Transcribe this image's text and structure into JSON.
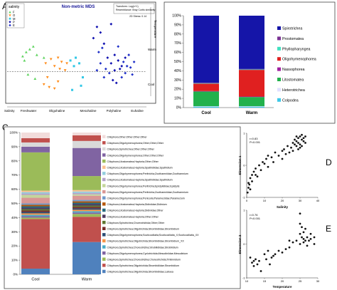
{
  "panel_letters": {
    "a": "A",
    "b": "B",
    "c": "C",
    "d": "D",
    "e": "E"
  },
  "chart_data": [
    {
      "panel": "A",
      "type": "scatter",
      "title": "Non-metric MDS",
      "info_lines": [
        "Transform: Log(x+1)",
        "Resemblance: Bray Curtis similarity"
      ],
      "stress": "2D Stress: 0.14",
      "legend_title": "salinity",
      "legend": [
        {
          "key": "F",
          "color": "#5fd35f",
          "shape": "tri-up"
        },
        {
          "key": "O",
          "color": "#ff8c1a",
          "shape": "tri-down"
        },
        {
          "key": "M",
          "color": "#33c8e6",
          "shape": "square"
        },
        {
          "key": "P",
          "color": "#1010b0",
          "shape": "diamond"
        },
        {
          "key": "E",
          "color": "#2030c8",
          "shape": "diamond"
        }
      ],
      "right_axis": {
        "top": "Temperature",
        "mid": "Warm",
        "bottom": "Cool"
      },
      "bottom_axis": {
        "start": "Salinity",
        "labels": [
          "Freshwater",
          "Oligohaline",
          "Mesohaline",
          "Polyhaline",
          "Euhaline"
        ]
      },
      "points": {
        "F": [
          [
            -1.6,
            0.55
          ],
          [
            -1.5,
            0.7
          ],
          [
            -1.4,
            0.8
          ],
          [
            -1.3,
            0.9
          ],
          [
            -1.55,
            0.4
          ],
          [
            -1.2,
            0.6
          ],
          [
            -1.0,
            0.5
          ],
          [
            -1.45,
            -0.1
          ],
          [
            -1.25,
            -0.25
          ]
        ],
        "O": [
          [
            -0.95,
            0.3
          ],
          [
            -0.8,
            0.45
          ],
          [
            -0.7,
            0.2
          ],
          [
            -0.6,
            0.5
          ],
          [
            -0.5,
            0.35
          ],
          [
            -0.55,
            0.1
          ],
          [
            -0.35,
            0.3
          ],
          [
            -0.4,
            0.05
          ],
          [
            -1.0,
            -0.45
          ],
          [
            -0.85,
            -0.55
          ],
          [
            -0.7,
            -0.6
          ],
          [
            -0.6,
            -0.35
          ],
          [
            -0.9,
            -0.2
          ]
        ],
        "M": [
          [
            -0.25,
            0.4
          ],
          [
            -0.15,
            0.2
          ],
          [
            -0.1,
            0.5
          ],
          [
            0.0,
            0.3
          ],
          [
            0.05,
            -0.5
          ],
          [
            -0.2,
            -0.65
          ],
          [
            0.1,
            -0.2
          ]
        ],
        "P": [
          [
            0.4,
            1.2
          ],
          [
            0.5,
            1.6
          ],
          [
            0.6,
            1.4
          ],
          [
            0.7,
            1.0
          ],
          [
            0.9,
            1.7
          ],
          [
            0.8,
            0.5
          ],
          [
            0.9,
            0.3
          ],
          [
            1.0,
            0.6
          ],
          [
            1.1,
            0.4
          ],
          [
            1.2,
            0.2
          ],
          [
            1.3,
            0.5
          ],
          [
            1.15,
            0.1
          ],
          [
            1.0,
            0.05
          ],
          [
            0.95,
            -0.3
          ],
          [
            1.05,
            -0.4
          ]
        ],
        "E": [
          [
            0.6,
            0.3
          ],
          [
            0.75,
            0.1
          ],
          [
            0.85,
            -0.05
          ],
          [
            1.25,
            0.35
          ],
          [
            1.35,
            0.2
          ],
          [
            1.4,
            0.6
          ],
          [
            1.45,
            0.15
          ],
          [
            1.55,
            0.35
          ],
          [
            1.3,
            -0.05
          ],
          [
            1.5,
            -0.1
          ],
          [
            1.2,
            -0.2
          ],
          [
            0.7,
            -0.2
          ],
          [
            0.5,
            0.05
          ],
          [
            0.55,
            0.7
          ],
          [
            1.1,
            0.9
          ],
          [
            0.65,
            0.85
          ]
        ]
      },
      "xlim": [
        -2.0,
        1.9
      ],
      "ylim": [
        -1.0,
        2.0
      ],
      "cutoff": 0.0
    },
    {
      "panel": "B",
      "type": "bar",
      "stacked": true,
      "categories": [
        "Cool",
        "Warm"
      ],
      "ylim": [
        0,
        100
      ],
      "yticks": [
        "0%",
        "10%",
        "20%",
        "30%",
        "40%",
        "50%",
        "60%",
        "70%",
        "80%",
        "90%",
        "100%"
      ],
      "series": [
        {
          "name": "Colpodea",
          "color": "#3dc8e8",
          "values": [
            1,
            1
          ]
        },
        {
          "name": "Heterotrichea",
          "color": "#e0e0ff",
          "values": [
            0.5,
            0.5
          ]
        },
        {
          "name": "Litostomatea",
          "color": "#22b14c",
          "values": [
            16,
            10
          ]
        },
        {
          "name": "Nassophorea",
          "color": "#a020a0",
          "values": [
            0.5,
            0.5
          ]
        },
        {
          "name": "Oligohymenophorea",
          "color": "#e02020",
          "values": [
            8,
            29
          ]
        },
        {
          "name": "Phyllopharyngea",
          "color": "#40e0c0",
          "values": [
            0.5,
            0.5
          ]
        },
        {
          "name": "Prostomatea",
          "color": "#7b3294",
          "values": [
            0.5,
            0.5
          ]
        },
        {
          "name": "Spirotrichea",
          "color": "#1515a8",
          "values": [
            73,
            58
          ]
        }
      ]
    },
    {
      "panel": "C",
      "type": "bar",
      "stacked": true,
      "categories": [
        "Cool",
        "Warm"
      ],
      "ylim": [
        0,
        100
      ],
      "yticks": [
        "0%",
        "10%",
        "20%",
        "30%",
        "40%",
        "50%",
        "60%",
        "70%",
        "80%",
        "90%",
        "100%"
      ],
      "series": [
        {
          "name": "Ciliophora;Spirotrichea;Oligotrichida;Strombidiidae;Laboea",
          "color": "#4f81bd",
          "values": [
            4,
            23
          ]
        },
        {
          "name": "Ciliophora;Spirotrichea;Oligotrichida;Strombidiidae;Strombidium",
          "color": "#c0504d",
          "values": [
            35,
            18
          ]
        },
        {
          "name": "Ciliophora;Spirotrichea;Choreotrichia;Choreotrichida;Tintinnidium",
          "color": "#9bbb59",
          "values": [
            1,
            2
          ]
        },
        {
          "name": "Ciliophora;Oligohymenophorea;Cyclotrichida;Mesodiniidae;Mesodinium",
          "color": "#8064a2",
          "values": [
            1,
            1
          ]
        },
        {
          "name": "Ciliophora;Spirotrichea;Choreotrichia;Strobilidiidae;Strobilidium",
          "color": "#4bacc6",
          "values": [
            1,
            1
          ]
        },
        {
          "name": "Ciliophora;Spirotrichea;Oligotrichida;Strombidiidae;Strombidium_XX",
          "color": "#f79646",
          "values": [
            1,
            1
          ]
        },
        {
          "name": "Ciliophora;Oligohymenophorea;Scuticociliatia;Scuticociliatia_X;Scuticociliatia_XX",
          "color": "#2c4d75",
          "values": [
            1,
            1
          ]
        },
        {
          "name": "Ciliophora;Spirotrichea;Oligotrichida;Strombidiidae;Strombidium",
          "color": "#772c2a",
          "values": [
            1,
            1
          ]
        },
        {
          "name": "Ciliophora;Spirotrichea;Choreotrichida;Other;Other",
          "color": "#5f7530",
          "values": [
            1,
            1
          ]
        },
        {
          "name": "Ciliophora;Litostomatea;Haptoria;Other;Other",
          "color": "#4d3b62",
          "values": [
            1,
            1
          ]
        },
        {
          "name": "Ciliophora;Litostomatea;Haptoria;Didiniidae;Other",
          "color": "#276a7c",
          "values": [
            1,
            1
          ]
        },
        {
          "name": "Ciliophora;Litostomatea;Haptoria;Didiniidae;Didinium",
          "color": "#b65708",
          "values": [
            1,
            1
          ]
        },
        {
          "name": "Ciliophora;Oligohymenophorea;Peniculia;Parameciidae;Paramecium",
          "color": "#729aca",
          "values": [
            1,
            1
          ]
        },
        {
          "name": "Ciliophora;Oligohymenophorea;Peritrichia;Zoothamniidae;Zoothamnium",
          "color": "#d99694",
          "values": [
            4,
            3
          ]
        },
        {
          "name": "Ciliophora;Oligohymenophorea;Peritrichia;Epistylididae;Epistylis",
          "color": "#c3d69b",
          "values": [
            2,
            1
          ]
        },
        {
          "name": "Ciliophora;Litostomatea;Haptoria;Spathidiidae;Spathidium",
          "color": "#b3a2c7",
          "values": [
            1,
            1
          ]
        },
        {
          "name": "Ciliophora;Oligohymenophorea;Peritrichia;Zoothamniidae;Zoothamnium",
          "color": "#93cddd",
          "values": [
            1,
            1
          ]
        },
        {
          "name": "Ciliophora;Litostomatea;Haptoria;Spathidiidae;Spathidium",
          "color": "#fac090",
          "values": [
            1,
            1
          ]
        },
        {
          "name": "Ciliophora;Litostomatea;Haptoria;Other;Other",
          "color": "#9bbb59",
          "values": [
            27,
            10
          ]
        },
        {
          "name": "Ciliophora;Oligohymenophorea;Other;Other;Other",
          "color": "#8064a2",
          "values": [
            4,
            20
          ]
        },
        {
          "name": "Ciliophora;Spirotrichea;Other;Other;Other",
          "color": "#d9d9d9",
          "values": [
            3,
            5
          ]
        },
        {
          "name": "Ciliophora;Oligohymenophorea;Other;Other;Other",
          "color": "#c0504d",
          "values": [
            3,
            4
          ]
        },
        {
          "name": "Ciliophora;Other;Other;Other;Other",
          "color": "#f2dcdb",
          "values": [
            4,
            2
          ]
        }
      ]
    },
    {
      "panel": "D",
      "type": "scatter",
      "xlabel": "Salinity",
      "ylabel": "Dimension 1",
      "xlim": [
        0,
        40
      ],
      "ylim": [
        -1,
        1
      ],
      "xticks": [
        "0",
        "10",
        "20",
        "30",
        "40"
      ],
      "yticks": [
        "-1",
        "0",
        "1"
      ],
      "stats": [
        "r=0.83",
        "P<0.001"
      ],
      "points": [
        [
          0.5,
          -0.85
        ],
        [
          1,
          -0.7
        ],
        [
          1,
          -0.55
        ],
        [
          1.5,
          -0.6
        ],
        [
          2,
          -0.4
        ],
        [
          2,
          -0.75
        ],
        [
          3,
          -0.3
        ],
        [
          3,
          -0.5
        ],
        [
          4,
          -0.2
        ],
        [
          5,
          -0.3
        ],
        [
          5,
          -0.1
        ],
        [
          6,
          -0.35
        ],
        [
          7,
          0.0
        ],
        [
          8,
          -0.15
        ],
        [
          9,
          0.1
        ],
        [
          10,
          0.05
        ],
        [
          11,
          0.2
        ],
        [
          12,
          -0.05
        ],
        [
          12,
          0.3
        ],
        [
          14,
          0.25
        ],
        [
          15,
          0.1
        ],
        [
          16,
          0.4
        ],
        [
          18,
          0.3
        ],
        [
          20,
          0.45
        ],
        [
          20,
          0.2
        ],
        [
          21,
          0.5
        ],
        [
          22,
          0.35
        ],
        [
          23,
          0.6
        ],
        [
          24,
          0.4
        ],
        [
          25,
          0.55
        ],
        [
          26,
          0.7
        ],
        [
          26,
          0.45
        ],
        [
          27,
          0.65
        ],
        [
          27,
          0.8
        ],
        [
          28,
          0.6
        ],
        [
          28,
          0.75
        ],
        [
          29,
          0.85
        ],
        [
          29,
          0.7
        ],
        [
          30,
          0.9
        ],
        [
          30,
          0.65
        ],
        [
          31,
          0.8
        ],
        [
          31,
          0.95
        ],
        [
          32,
          0.75
        ],
        [
          32,
          0.85
        ],
        [
          33,
          0.9
        ],
        [
          30,
          0.55
        ],
        [
          29,
          0.5
        ],
        [
          33,
          0.7
        ],
        [
          31,
          0.6
        ],
        [
          28,
          0.9
        ]
      ]
    },
    {
      "panel": "E",
      "type": "scatter",
      "xlabel": "Temperature",
      "ylabel": "Dimension 2",
      "xlim": [
        10,
        30
      ],
      "ylim": [
        -1,
        1
      ],
      "xticks": [
        "10",
        "15",
        "20",
        "25",
        "30"
      ],
      "yticks": [
        "-1",
        "0",
        "1"
      ],
      "stats": [
        "r=0.76",
        "P<0.001"
      ],
      "points": [
        [
          11,
          -0.4
        ],
        [
          11.5,
          -0.55
        ],
        [
          12,
          -0.5
        ],
        [
          12,
          -0.65
        ],
        [
          12.5,
          -0.45
        ],
        [
          13,
          -0.6
        ],
        [
          13.5,
          -0.5
        ],
        [
          14,
          -0.8
        ],
        [
          15,
          -0.3
        ],
        [
          15.5,
          -0.45
        ],
        [
          16,
          -0.2
        ],
        [
          16.5,
          -0.6
        ],
        [
          17,
          -0.4
        ],
        [
          17.5,
          -0.35
        ],
        [
          18,
          -0.3
        ],
        [
          19,
          -0.2
        ],
        [
          20,
          -0.25
        ],
        [
          21,
          -0.15
        ],
        [
          22,
          0.1
        ],
        [
          22,
          -0.1
        ],
        [
          23,
          0.05
        ],
        [
          24,
          0.1
        ],
        [
          25,
          0.9
        ],
        [
          25,
          0.6
        ],
        [
          25,
          0.3
        ],
        [
          25,
          0.0
        ],
        [
          25.5,
          0.5
        ],
        [
          25.5,
          0.2
        ],
        [
          26,
          0.15
        ],
        [
          26,
          0.05
        ],
        [
          26,
          0.35
        ],
        [
          26.5,
          0.1
        ],
        [
          26.5,
          0.45
        ],
        [
          27,
          0.2
        ],
        [
          27,
          -0.05
        ],
        [
          27.5,
          0.1
        ],
        [
          28,
          0.15
        ],
        [
          28,
          0.3
        ],
        [
          29,
          0.2
        ],
        [
          29,
          0.0
        ]
      ]
    }
  ]
}
